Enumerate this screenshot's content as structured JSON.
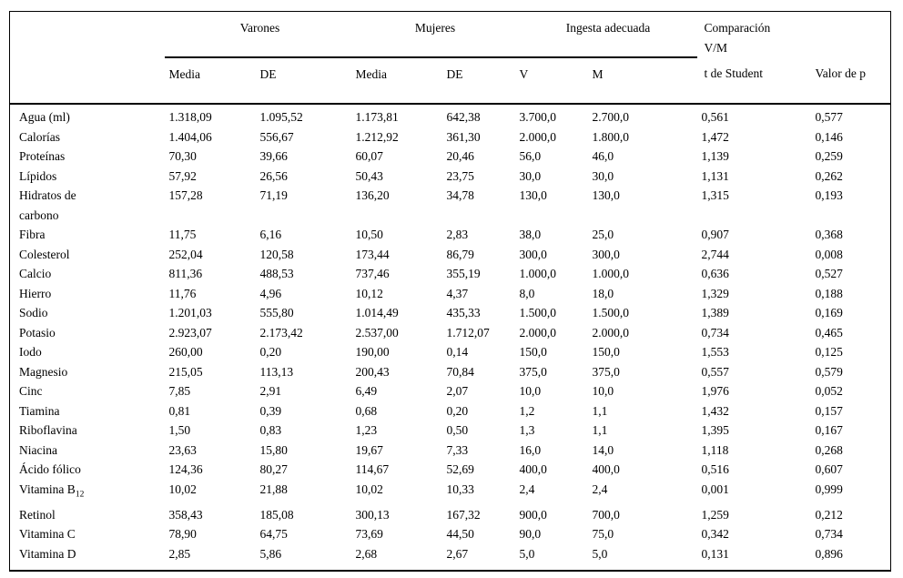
{
  "table": {
    "groups": [
      {
        "label": "Varones"
      },
      {
        "label": "Mujeres"
      },
      {
        "label": "Ingesta adecuada"
      },
      {
        "label": "Comparación V/M"
      }
    ],
    "sub_headers": [
      "Media",
      "DE",
      "Media",
      "DE",
      "V",
      "M",
      "t de Student",
      "Valor de p"
    ],
    "rows": [
      {
        "label": "Agua (ml)",
        "values": [
          "1.318,09",
          "1.095,52",
          "1.173,81",
          "642,38",
          "3.700,0",
          "2.700,0",
          "0,561",
          "0,577"
        ]
      },
      {
        "label": "Calorías",
        "values": [
          "1.404,06",
          "556,67",
          "1.212,92",
          "361,30",
          "2.000,0",
          "1.800,0",
          "1,472",
          "0,146"
        ]
      },
      {
        "label": "Proteínas",
        "values": [
          "70,30",
          "39,66",
          "60,07",
          "20,46",
          "56,0",
          "46,0",
          "1,139",
          "0,259"
        ]
      },
      {
        "label": "Lípidos",
        "values": [
          "57,92",
          "26,56",
          "50,43",
          "23,75",
          "30,0",
          "30,0",
          "1,131",
          "0,262"
        ]
      },
      {
        "label": "Hidratos de carbono",
        "values": [
          "157,28",
          "71,19",
          "136,20",
          "34,78",
          "130,0",
          "130,0",
          "1,315",
          "0,193"
        ]
      },
      {
        "label": "Fibra",
        "values": [
          "11,75",
          "6,16",
          "10,50",
          "2,83",
          "38,0",
          "25,0",
          "0,907",
          "0,368"
        ]
      },
      {
        "label": "Colesterol",
        "values": [
          "252,04",
          "120,58",
          "173,44",
          "86,79",
          "300,0",
          "300,0",
          "2,744",
          "0,008"
        ]
      },
      {
        "label": "Calcio",
        "values": [
          "811,36",
          "488,53",
          "737,46",
          "355,19",
          "1.000,0",
          "1.000,0",
          "0,636",
          "0,527"
        ]
      },
      {
        "label": "Hierro",
        "values": [
          "11,76",
          "4,96",
          "10,12",
          "4,37",
          "8,0",
          "18,0",
          "1,329",
          "0,188"
        ]
      },
      {
        "label": "Sodio",
        "values": [
          "1.201,03",
          "555,80",
          "1.014,49",
          "435,33",
          "1.500,0",
          "1.500,0",
          "1,389",
          "0,169"
        ]
      },
      {
        "label": "Potasio",
        "values": [
          "2.923,07",
          "2.173,42",
          "2.537,00",
          "1.712,07",
          "2.000,0",
          "2.000,0",
          "0,734",
          "0,465"
        ]
      },
      {
        "label": "Iodo",
        "values": [
          "260,00",
          "0,20",
          "190,00",
          "0,14",
          "150,0",
          "150,0",
          "1,553",
          "0,125"
        ]
      },
      {
        "label": "Magnesio",
        "values": [
          "215,05",
          "113,13",
          "200,43",
          "70,84",
          "375,0",
          "375,0",
          "0,557",
          "0,579"
        ]
      },
      {
        "label": "Cinc",
        "values": [
          "7,85",
          "2,91",
          "6,49",
          "2,07",
          "10,0",
          "10,0",
          "1,976",
          "0,052"
        ]
      },
      {
        "label": "Tiamina",
        "values": [
          "0,81",
          "0,39",
          "0,68",
          "0,20",
          "1,2",
          "1,1",
          "1,432",
          "0,157"
        ]
      },
      {
        "label": "Riboflavina",
        "values": [
          "1,50",
          "0,83",
          "1,23",
          "0,50",
          "1,3",
          "1,1",
          "1,395",
          "0,167"
        ]
      },
      {
        "label": "Niacina",
        "values": [
          "23,63",
          "15,80",
          "19,67",
          "7,33",
          "16,0",
          "14,0",
          "1,118",
          "0,268"
        ]
      },
      {
        "label": "Ácido fólico",
        "values": [
          "124,36",
          "80,27",
          "114,67",
          "52,69",
          "400,0",
          "400,0",
          "0,516",
          "0,607"
        ]
      },
      {
        "label": "Vitamina B",
        "label_sub": "12",
        "values": [
          "10,02",
          "21,88",
          "10,02",
          "10,33",
          "2,4",
          "2,4",
          "0,001",
          "0,999"
        ]
      },
      {
        "label": "Retinol",
        "values": [
          "358,43",
          "185,08",
          "300,13",
          "167,32",
          "900,0",
          "700,0",
          "1,259",
          "0,212"
        ]
      },
      {
        "label": "Vitamina C",
        "values": [
          "78,90",
          "64,75",
          "73,69",
          "44,50",
          "90,0",
          "75,0",
          "0,342",
          "0,734"
        ]
      },
      {
        "label": "Vitamina D",
        "values": [
          "2,85",
          "5,86",
          "2,68",
          "2,67",
          "5,0",
          "5,0",
          "0,131",
          "0,896"
        ]
      }
    ]
  }
}
